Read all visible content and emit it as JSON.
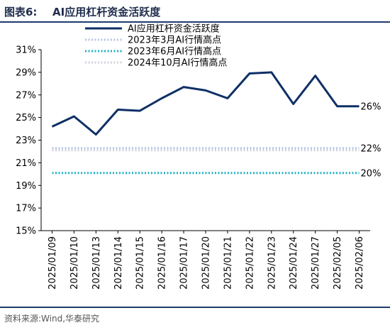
{
  "header": {
    "figure_label": "图表6:",
    "title": "AI应用杠杆资金活跃度"
  },
  "footer": {
    "source": "资料来源:Wind,华泰研究"
  },
  "colors": {
    "main_line": "#0f2f66",
    "ref_mar2023": "#b7c6e3",
    "ref_jun2023": "#1fb2c4",
    "ref_oct2024": "#cfd3dc",
    "header_rule": "#1f3b6e"
  },
  "chart_data": {
    "type": "line",
    "categories": [
      "2025/01/09",
      "2025/01/10",
      "2025/01/13",
      "2025/01/14",
      "2025/01/15",
      "2025/01/16",
      "2025/01/17",
      "2025/01/20",
      "2025/01/21",
      "2025/01/22",
      "2025/01/23",
      "2025/01/24",
      "2025/01/27",
      "2025/02/05",
      "2025/02/06"
    ],
    "y_unit": "%",
    "ylim": [
      15,
      31
    ],
    "yticks": [
      "15%",
      "17%",
      "19%",
      "21%",
      "23%",
      "25%",
      "27%",
      "29%",
      "31%"
    ],
    "grid": false,
    "legend_position": "top",
    "series": [
      {
        "name": "AI应用杠杆资金活跃度",
        "style": "solid",
        "color": "#0f2f66",
        "values": [
          24.2,
          25.1,
          23.5,
          25.7,
          25.6,
          26.7,
          27.7,
          27.4,
          26.7,
          28.9,
          29.0,
          26.2,
          28.7,
          26.0,
          26.0
        ],
        "end_label": "26%"
      },
      {
        "name": "2023年3月AI行情高点",
        "style": "dotted",
        "color": "#b7c6e3",
        "values": [
          22.3,
          22.3,
          22.3,
          22.3,
          22.3,
          22.3,
          22.3,
          22.3,
          22.3,
          22.3,
          22.3,
          22.3,
          22.3,
          22.3,
          22.3
        ],
        "end_label": "22%"
      },
      {
        "name": "2023年6月AI行情高点",
        "style": "dotted",
        "color": "#1fb2c4",
        "values": [
          20.1,
          20.1,
          20.1,
          20.1,
          20.1,
          20.1,
          20.1,
          20.1,
          20.1,
          20.1,
          20.1,
          20.1,
          20.1,
          20.1,
          20.1
        ],
        "end_label": "20%"
      },
      {
        "name": "2024年10月AI行情高点",
        "style": "dotted",
        "color": "#cfd3dc",
        "values": [
          22.1,
          22.1,
          22.1,
          22.1,
          22.1,
          22.1,
          22.1,
          22.1,
          22.1,
          22.1,
          22.1,
          22.1,
          22.1,
          22.1,
          22.1
        ],
        "end_label": ""
      }
    ]
  }
}
